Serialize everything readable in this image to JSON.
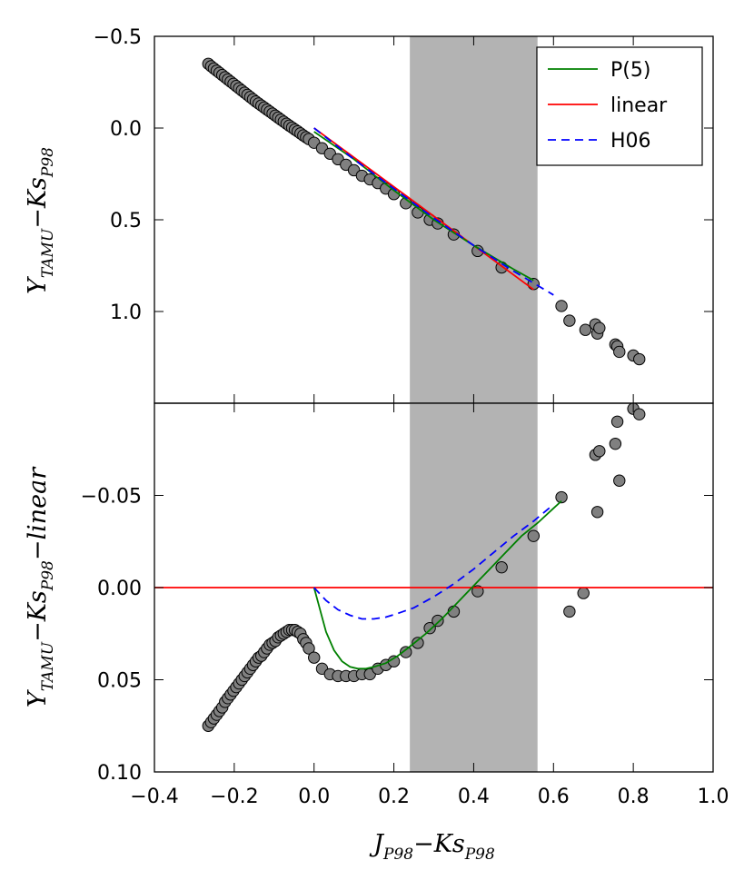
{
  "chart_data": [
    {
      "type": "scatter",
      "panel": "top",
      "ylabel": {
        "main": "Y",
        "sub1": "TAMU",
        "mid": "−Ks",
        "sub2": "P98"
      },
      "xlim": [
        -0.4,
        1.0
      ],
      "ylim": [
        1.5,
        -0.5
      ],
      "y_inverted": true,
      "xticks": [
        -0.4,
        -0.2,
        0.0,
        0.2,
        0.4,
        0.6,
        0.8,
        1.0
      ],
      "yticks": [
        {
          "v": -0.5,
          "label": "−0.5"
        },
        {
          "v": 0.0,
          "label": "0.0"
        },
        {
          "v": 0.5,
          "label": "0.5"
        },
        {
          "v": 1.0,
          "label": "1.0"
        }
      ],
      "shaded_region": [
        0.24,
        0.56
      ],
      "series": [
        {
          "name": "P(5)",
          "color": "#008000",
          "style": "solid",
          "x": [
            0.0,
            0.1,
            0.2,
            0.3,
            0.4,
            0.5,
            0.55
          ],
          "y": [
            0.02,
            0.17,
            0.34,
            0.5,
            0.64,
            0.77,
            0.83
          ]
        },
        {
          "name": "linear",
          "color": "#ff0000",
          "style": "solid",
          "x": [
            0.0,
            0.55
          ],
          "y": [
            0.0,
            0.88
          ]
        },
        {
          "name": "H06",
          "color": "#0000ff",
          "style": "dashed",
          "x": [
            0.0,
            0.1,
            0.2,
            0.3,
            0.4,
            0.5,
            0.6
          ],
          "y": [
            0.0,
            0.17,
            0.33,
            0.49,
            0.64,
            0.78,
            0.91
          ]
        },
        {
          "name": "data",
          "color": "#808080",
          "style": "markers",
          "x": [
            -0.265,
            -0.258,
            -0.251,
            -0.244,
            -0.237,
            -0.23,
            -0.223,
            -0.216,
            -0.209,
            -0.202,
            -0.195,
            -0.188,
            -0.181,
            -0.174,
            -0.167,
            -0.16,
            -0.153,
            -0.146,
            -0.139,
            -0.132,
            -0.125,
            -0.118,
            -0.111,
            -0.104,
            -0.097,
            -0.09,
            -0.083,
            -0.076,
            -0.069,
            -0.062,
            -0.055,
            -0.048,
            -0.041,
            -0.034,
            -0.027,
            -0.02,
            -0.013,
            0.0,
            0.02,
            0.04,
            0.06,
            0.08,
            0.1,
            0.12,
            0.14,
            0.16,
            0.18,
            0.2,
            0.23,
            0.26,
            0.29,
            0.31,
            0.35,
            0.41,
            0.47,
            0.55,
            0.62,
            0.64,
            0.68,
            0.705,
            0.71,
            0.715,
            0.755,
            0.76,
            0.765,
            0.8,
            0.815
          ],
          "y": [
            -0.35,
            -0.337,
            -0.325,
            -0.313,
            -0.301,
            -0.289,
            -0.277,
            -0.265,
            -0.253,
            -0.241,
            -0.229,
            -0.217,
            -0.205,
            -0.193,
            -0.181,
            -0.169,
            -0.157,
            -0.145,
            -0.134,
            -0.123,
            -0.112,
            -0.101,
            -0.09,
            -0.079,
            -0.068,
            -0.057,
            -0.046,
            -0.035,
            -0.024,
            -0.013,
            -0.003,
            0.008,
            0.018,
            0.029,
            0.04,
            0.05,
            0.06,
            0.08,
            0.11,
            0.14,
            0.17,
            0.2,
            0.23,
            0.26,
            0.28,
            0.3,
            0.33,
            0.36,
            0.41,
            0.46,
            0.5,
            0.52,
            0.58,
            0.67,
            0.76,
            0.85,
            0.97,
            1.05,
            1.1,
            1.07,
            1.12,
            1.09,
            1.18,
            1.19,
            1.22,
            1.24,
            1.26
          ]
        }
      ]
    },
    {
      "type": "scatter",
      "panel": "bottom",
      "xlabel": {
        "main": "J",
        "sub1": "P98",
        "mid": "−Ks",
        "sub2": "P98"
      },
      "ylabel": {
        "main": "Y",
        "sub1": "TAMU",
        "mid": "−Ks",
        "sub2": "P98",
        "tail": "−linear"
      },
      "xlim": [
        -0.4,
        1.0
      ],
      "ylim": [
        0.1,
        -0.1
      ],
      "y_inverted": true,
      "xticks": [
        {
          "v": -0.4,
          "label": "−0.4"
        },
        {
          "v": -0.2,
          "label": "−0.2"
        },
        {
          "v": 0.0,
          "label": "0.0"
        },
        {
          "v": 0.2,
          "label": "0.2"
        },
        {
          "v": 0.4,
          "label": "0.4"
        },
        {
          "v": 0.6,
          "label": "0.6"
        },
        {
          "v": 0.8,
          "label": "0.8"
        },
        {
          "v": 1.0,
          "label": "1.0"
        }
      ],
      "yticks": [
        {
          "v": -0.05,
          "label": "−0.05"
        },
        {
          "v": 0.0,
          "label": "0.00"
        },
        {
          "v": 0.05,
          "label": "0.05"
        },
        {
          "v": 0.1,
          "label": "0.10"
        }
      ],
      "shaded_region": [
        0.24,
        0.56
      ],
      "series": [
        {
          "name": "linear",
          "color": "#ff0000",
          "style": "solid",
          "x": [
            -0.4,
            1.0
          ],
          "y": [
            0.0,
            0.0
          ]
        },
        {
          "name": "P(5)",
          "color": "#008000",
          "style": "solid",
          "x": [
            0.0,
            0.01,
            0.02,
            0.03,
            0.05,
            0.07,
            0.09,
            0.11,
            0.13,
            0.15,
            0.18,
            0.21,
            0.24,
            0.28,
            0.32,
            0.36,
            0.4,
            0.44,
            0.48,
            0.52,
            0.56,
            0.6,
            0.62
          ],
          "y": [
            0.0,
            0.008,
            0.016,
            0.024,
            0.034,
            0.04,
            0.043,
            0.044,
            0.044,
            0.043,
            0.041,
            0.037,
            0.032,
            0.025,
            0.017,
            0.008,
            -0.001,
            -0.01,
            -0.019,
            -0.028,
            -0.035,
            -0.043,
            -0.047
          ]
        },
        {
          "name": "H06",
          "color": "#0000ff",
          "style": "dashed",
          "x": [
            0.0,
            0.03,
            0.06,
            0.09,
            0.12,
            0.15,
            0.18,
            0.21,
            0.25,
            0.3,
            0.35,
            0.4,
            0.45,
            0.5,
            0.55,
            0.6
          ],
          "y": [
            0.0,
            0.007,
            0.012,
            0.015,
            0.017,
            0.017,
            0.016,
            0.014,
            0.011,
            0.005,
            -0.002,
            -0.01,
            -0.019,
            -0.028,
            -0.036,
            -0.045
          ]
        },
        {
          "name": "data",
          "color": "#808080",
          "style": "markers",
          "x": [
            -0.265,
            -0.258,
            -0.251,
            -0.244,
            -0.237,
            -0.23,
            -0.223,
            -0.216,
            -0.209,
            -0.202,
            -0.195,
            -0.188,
            -0.181,
            -0.174,
            -0.167,
            -0.16,
            -0.153,
            -0.146,
            -0.139,
            -0.132,
            -0.125,
            -0.118,
            -0.111,
            -0.104,
            -0.097,
            -0.09,
            -0.083,
            -0.076,
            -0.069,
            -0.062,
            -0.055,
            -0.048,
            -0.041,
            -0.034,
            -0.027,
            -0.02,
            -0.013,
            0.0,
            0.02,
            0.04,
            0.06,
            0.08,
            0.1,
            0.12,
            0.14,
            0.16,
            0.18,
            0.2,
            0.23,
            0.26,
            0.29,
            0.31,
            0.35,
            0.41,
            0.47,
            0.55,
            0.62,
            0.64,
            0.675,
            0.705,
            0.71,
            0.715,
            0.755,
            0.76,
            0.765,
            0.8,
            0.815
          ],
          "y": [
            0.075,
            0.073,
            0.071,
            0.069,
            0.067,
            0.065,
            0.062,
            0.06,
            0.058,
            0.056,
            0.054,
            0.052,
            0.05,
            0.048,
            0.046,
            0.044,
            0.042,
            0.04,
            0.038,
            0.037,
            0.035,
            0.033,
            0.031,
            0.03,
            0.029,
            0.027,
            0.026,
            0.025,
            0.024,
            0.023,
            0.023,
            0.023,
            0.024,
            0.025,
            0.028,
            0.03,
            0.033,
            0.038,
            0.044,
            0.047,
            0.048,
            0.048,
            0.048,
            0.047,
            0.047,
            0.044,
            0.042,
            0.04,
            0.035,
            0.03,
            0.022,
            0.018,
            0.013,
            0.002,
            -0.011,
            -0.028,
            -0.049,
            0.013,
            0.003,
            -0.072,
            -0.041,
            -0.074,
            -0.078,
            -0.09,
            -0.058,
            -0.097,
            -0.094
          ]
        }
      ]
    }
  ],
  "legend": {
    "placement": "top-right",
    "entries": [
      {
        "label": "P(5)",
        "color": "#008000",
        "style": "solid"
      },
      {
        "label": "linear",
        "color": "#ff0000",
        "style": "solid"
      },
      {
        "label": "H06",
        "color": "#0000ff",
        "style": "dashed"
      }
    ]
  },
  "colors": {
    "shade": "#b3b3b3",
    "marker_fill": "#808080",
    "marker_edge": "#000000"
  }
}
